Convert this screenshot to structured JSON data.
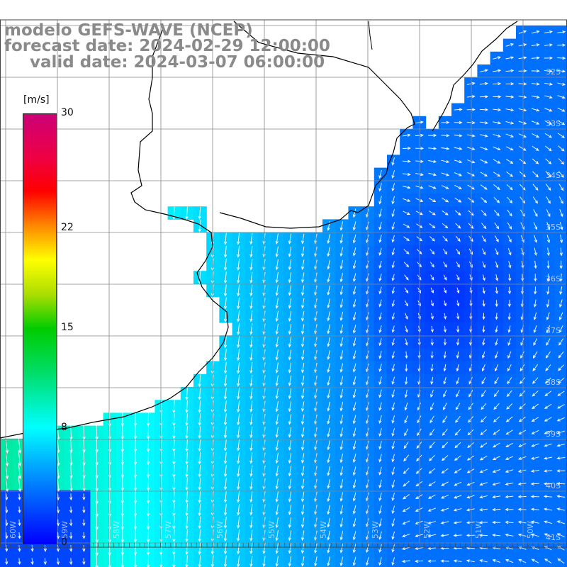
{
  "title": {
    "line1": "modelo GEFS-WAVE (NCEP)",
    "line2": "forecast date: 2024-02-29 12:00:00",
    "line3": "valid date: 2024-03-07 06:00:00"
  },
  "colorbar": {
    "unit": "[m/s]",
    "min": 0,
    "max": 30,
    "ticks": [
      {
        "value": 30,
        "label": "30"
      },
      {
        "value": 22,
        "label": "22"
      },
      {
        "value": 15,
        "label": "15"
      },
      {
        "value": 8,
        "label": "8"
      },
      {
        "value": 0,
        "label": "0"
      }
    ]
  },
  "lat_labels": [
    "32S",
    "33S",
    "34S",
    "35S",
    "36S",
    "37S",
    "38S",
    "39S",
    "40S",
    "41S"
  ],
  "lon_labels": [
    "60W",
    "59W",
    "58W",
    "57W",
    "56W",
    "55W",
    "54W",
    "53W",
    "52W",
    "51W",
    "50W"
  ],
  "colors": {
    "land": "#ffffff",
    "coast": "#000000",
    "grid": "#888888",
    "arrow": "#ffffff"
  },
  "field_description_values": {
    "wind_speed_range_mps": [
      2,
      11
    ],
    "dominant_direction": "from north in west part, weak and variable in east part"
  }
}
